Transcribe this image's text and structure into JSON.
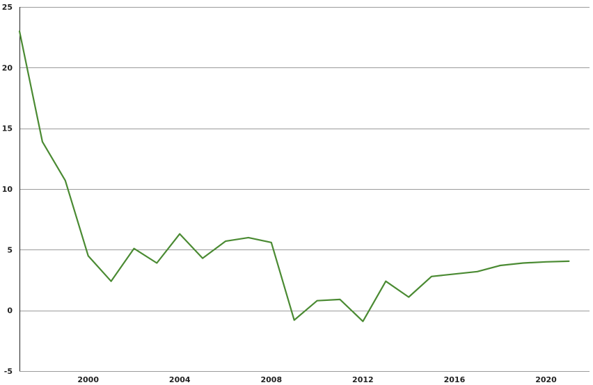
{
  "chart_data": {
    "type": "line",
    "title": "",
    "xlabel": "",
    "ylabel": "",
    "xlim": [
      1997,
      2021.9
    ],
    "ylim": [
      -5,
      25
    ],
    "x_ticks": [
      2000,
      2004,
      2008,
      2012,
      2016,
      2020
    ],
    "x_tick_labels": [
      "2000",
      "2004",
      "2008",
      "2012",
      "2016",
      "2020"
    ],
    "y_ticks": [
      -5,
      0,
      5,
      10,
      15,
      20,
      25
    ],
    "y_tick_labels": [
      "-5",
      "0",
      "5",
      "10",
      "15",
      "20",
      "25"
    ],
    "grid": "horizontal",
    "legend": "none",
    "series": [
      {
        "color": "#4a8a32",
        "x": [
          1997,
          1998,
          1999,
          2000,
          2001,
          2002,
          2003,
          2004,
          2005,
          2006,
          2007,
          2008,
          2009,
          2010,
          2011,
          2012,
          2013,
          2014,
          2015,
          2016,
          2017,
          2018,
          2019,
          2020,
          2021
        ],
        "y": [
          23.0,
          13.9,
          10.7,
          4.5,
          2.4,
          5.1,
          3.9,
          6.3,
          4.3,
          5.7,
          6.0,
          5.6,
          -0.8,
          0.8,
          0.9,
          -0.9,
          2.4,
          1.1,
          2.8,
          3.0,
          3.2,
          3.7,
          3.9,
          4.0,
          4.05
        ]
      }
    ]
  }
}
